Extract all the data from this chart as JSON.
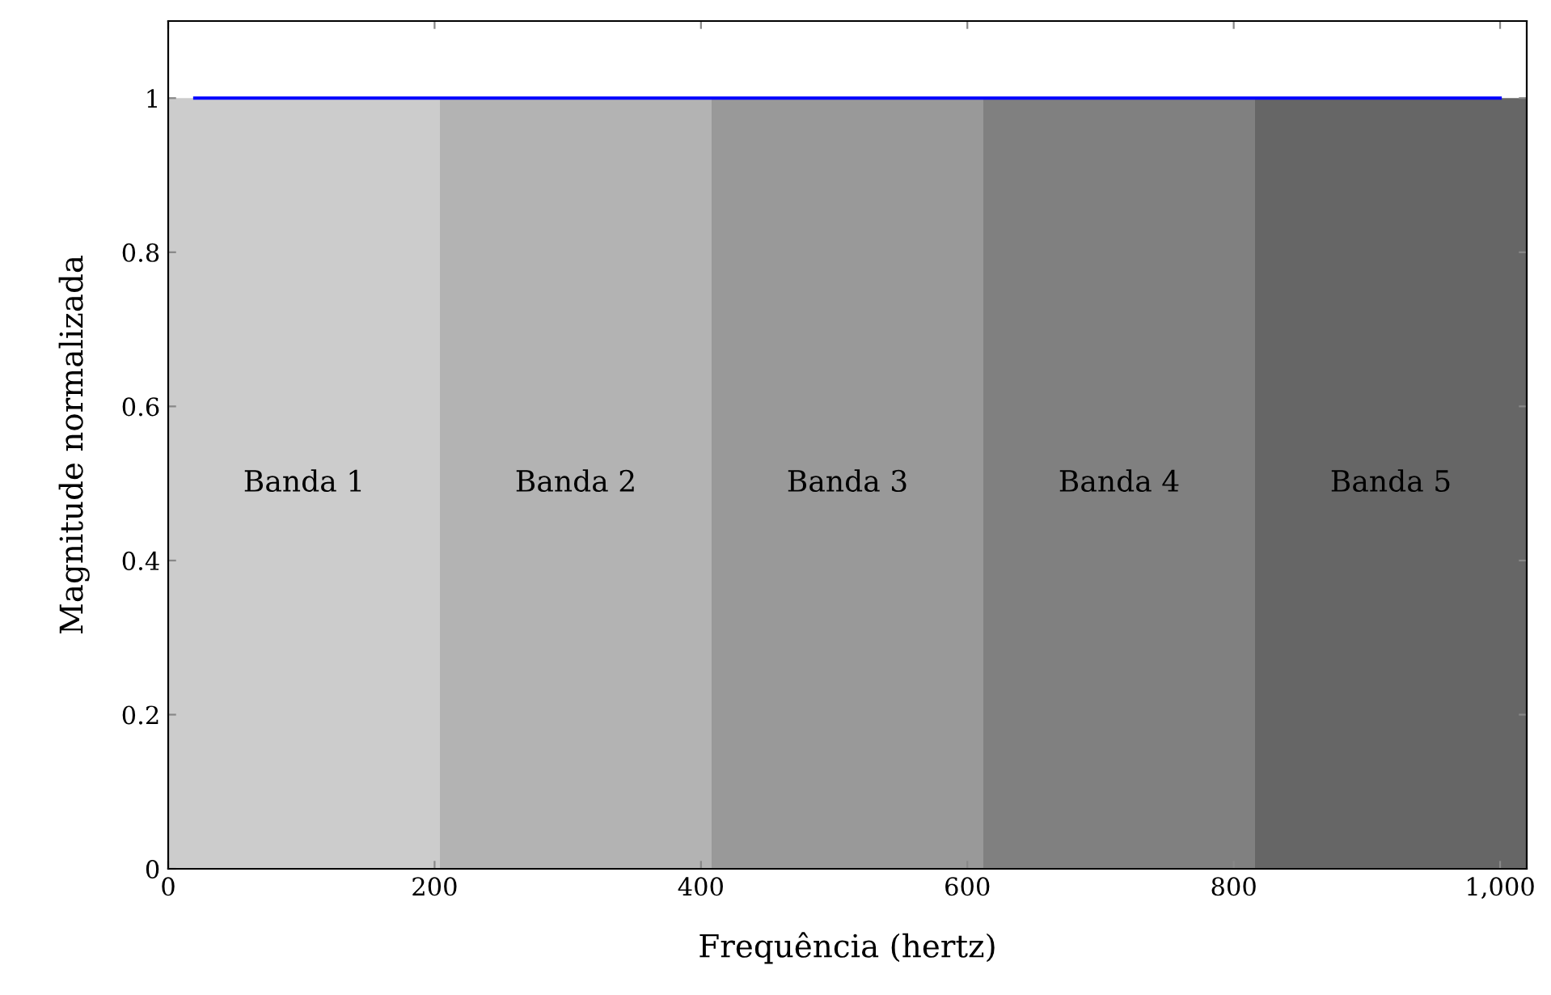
{
  "chart_data": {
    "type": "line",
    "xlabel": "Frequência (hertz)",
    "ylabel": "Magnitude normalizada",
    "xlim": [
      0,
      1020
    ],
    "ylim": [
      0,
      1.1
    ],
    "xticks": [
      0,
      200,
      400,
      600,
      800,
      {
        "value": 1000,
        "label": "1,000"
      }
    ],
    "yticks": [
      0,
      0.2,
      0.4,
      0.6,
      0.8,
      1
    ],
    "series": [
      {
        "color": "#0000ff",
        "x": [
          20,
          1000
        ],
        "values": [
          1,
          1
        ]
      }
    ],
    "bands": [
      {
        "axis": "x",
        "from": 0,
        "to": 204,
        "label": "Banda 1",
        "color": "#cccccc"
      },
      {
        "axis": "x",
        "from": 204,
        "to": 408,
        "label": "Banda 2",
        "color": "#b3b3b3"
      },
      {
        "axis": "x",
        "from": 408,
        "to": 612,
        "label": "Banda 3",
        "color": "#999999"
      },
      {
        "axis": "x",
        "from": 612,
        "to": 816,
        "label": "Banda 4",
        "color": "#808080"
      },
      {
        "axis": "x",
        "from": 816,
        "to": 1020,
        "label": "Banda 5",
        "color": "#666666"
      }
    ]
  }
}
